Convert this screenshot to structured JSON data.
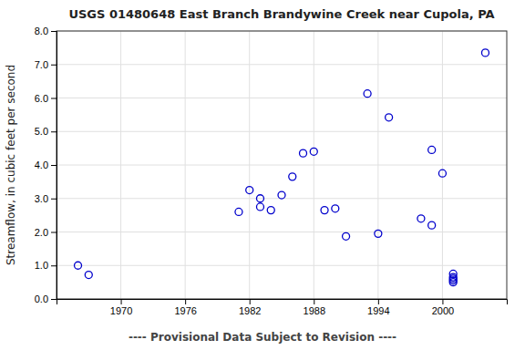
{
  "chart_data": {
    "type": "scatter",
    "title": "USGS 01480648 East Branch Brandywine Creek near Cupola, PA",
    "ylabel": "Streamflow, in cubic feet per second",
    "annotations": [
      "---- Provisional Data Subject to Revision ----"
    ],
    "x": [
      1966,
      1967,
      1981,
      1982,
      1983,
      1983,
      1984,
      1985,
      1986,
      1987,
      1988,
      1989,
      1990,
      1991,
      1993,
      1994,
      1995,
      1998,
      1999,
      1999,
      2000,
      2001,
      2001,
      2001,
      2001,
      2001,
      2004
    ],
    "values": [
      1.0,
      0.72,
      2.6,
      3.25,
      3.0,
      2.75,
      2.65,
      3.1,
      3.65,
      4.35,
      4.4,
      2.65,
      2.7,
      1.87,
      6.13,
      1.95,
      5.42,
      2.4,
      2.2,
      4.45,
      3.75,
      0.75,
      0.65,
      0.6,
      0.55,
      0.5,
      7.35
    ],
    "color": "#0000CC",
    "marker": "circle",
    "xlim": [
      1964,
      2006
    ],
    "ylim": [
      0.0,
      8.0
    ],
    "xticks": [
      1970,
      1976,
      1982,
      1988,
      1994,
      2000
    ],
    "yticks": [
      {
        "value": 0.0,
        "label": "0.0"
      },
      {
        "value": 1.0,
        "label": "1.0"
      },
      {
        "value": 2.0,
        "label": "2.0"
      },
      {
        "value": 3.0,
        "label": "3.0"
      },
      {
        "value": 4.0,
        "label": "4.0"
      },
      {
        "value": 5.0,
        "label": "5.0"
      },
      {
        "value": 6.0,
        "label": "6.0"
      },
      {
        "value": 7.0,
        "label": "7.0"
      },
      {
        "value": 8.0,
        "label": "8.0"
      }
    ],
    "grid": true
  }
}
